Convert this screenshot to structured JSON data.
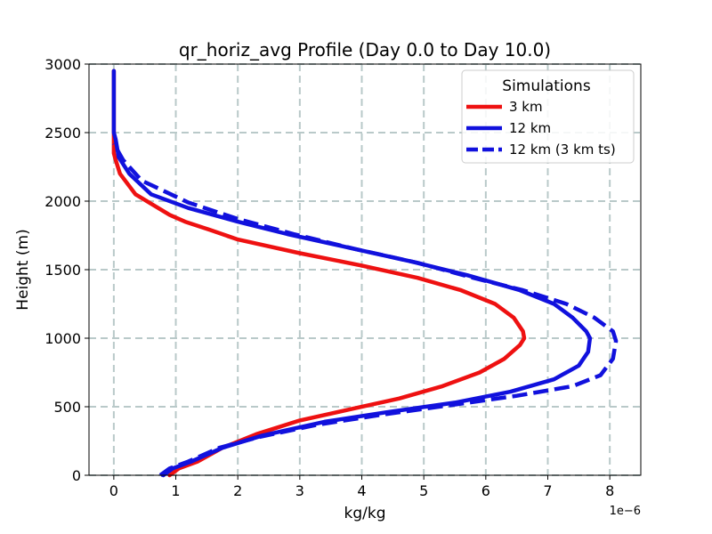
{
  "chart_data": {
    "type": "line",
    "title": "qr_horiz_avg Profile (Day 0.0 to Day 10.0)",
    "xlabel": "kg/kg",
    "ylabel": "Height (m)",
    "x_offset_label": "1e−6",
    "xlim": [
      -0.4,
      8.5
    ],
    "ylim": [
      0,
      3000
    ],
    "xticks": [
      0,
      1,
      2,
      3,
      4,
      5,
      6,
      7,
      8
    ],
    "xtick_labels": [
      "0",
      "1",
      "2",
      "3",
      "4",
      "5",
      "6",
      "7",
      "8"
    ],
    "yticks": [
      0,
      500,
      1000,
      1500,
      2000,
      2500,
      3000
    ],
    "ytick_labels": [
      "0",
      "500",
      "1000",
      "1500",
      "2000",
      "2500",
      "3000"
    ],
    "x_scale_factor": 1e-06,
    "grid": true,
    "legend": {
      "title": "Simulations",
      "location": "top-right"
    },
    "series": [
      {
        "name": "3 km",
        "color": "#ee1111",
        "style": "solid",
        "points": [
          [
            0.9,
            0
          ],
          [
            1.05,
            50
          ],
          [
            1.35,
            100
          ],
          [
            1.75,
            200
          ],
          [
            2.3,
            300
          ],
          [
            3.0,
            400
          ],
          [
            3.8,
            480
          ],
          [
            4.6,
            560
          ],
          [
            5.3,
            650
          ],
          [
            5.9,
            750
          ],
          [
            6.3,
            850
          ],
          [
            6.55,
            950
          ],
          [
            6.62,
            1000
          ],
          [
            6.6,
            1050
          ],
          [
            6.45,
            1150
          ],
          [
            6.15,
            1250
          ],
          [
            5.6,
            1350
          ],
          [
            4.9,
            1440
          ],
          [
            4.0,
            1530
          ],
          [
            3.0,
            1620
          ],
          [
            2.0,
            1720
          ],
          [
            1.55,
            1790
          ],
          [
            1.15,
            1850
          ],
          [
            0.9,
            1900
          ],
          [
            0.35,
            2050
          ],
          [
            0.1,
            2200
          ],
          [
            0.03,
            2300
          ],
          [
            0.0,
            2350
          ],
          [
            0.0,
            2500
          ],
          [
            0.0,
            2950
          ]
        ]
      },
      {
        "name": "12 km",
        "color": "#1111dd",
        "style": "solid",
        "points": [
          [
            0.8,
            0
          ],
          [
            0.95,
            50
          ],
          [
            1.25,
            100
          ],
          [
            1.75,
            200
          ],
          [
            2.4,
            290
          ],
          [
            3.4,
            390
          ],
          [
            4.4,
            460
          ],
          [
            5.5,
            530
          ],
          [
            6.4,
            610
          ],
          [
            7.1,
            700
          ],
          [
            7.5,
            800
          ],
          [
            7.65,
            900
          ],
          [
            7.68,
            1000
          ],
          [
            7.62,
            1050
          ],
          [
            7.4,
            1150
          ],
          [
            7.1,
            1250
          ],
          [
            6.55,
            1350
          ],
          [
            5.7,
            1460
          ],
          [
            4.8,
            1560
          ],
          [
            3.8,
            1660
          ],
          [
            2.8,
            1760
          ],
          [
            2.0,
            1850
          ],
          [
            1.2,
            1950
          ],
          [
            0.6,
            2050
          ],
          [
            0.25,
            2200
          ],
          [
            0.08,
            2320
          ],
          [
            0.03,
            2450
          ],
          [
            0.0,
            2500
          ],
          [
            0.0,
            2950
          ]
        ]
      },
      {
        "name": "12 km (3 km ts)",
        "color": "#1111dd",
        "style": "dashed",
        "points": [
          [
            0.75,
            0
          ],
          [
            0.9,
            50
          ],
          [
            1.2,
            100
          ],
          [
            1.7,
            200
          ],
          [
            2.35,
            280
          ],
          [
            3.3,
            370
          ],
          [
            4.3,
            440
          ],
          [
            5.4,
            510
          ],
          [
            6.5,
            580
          ],
          [
            7.4,
            650
          ],
          [
            7.85,
            730
          ],
          [
            8.05,
            850
          ],
          [
            8.1,
            980
          ],
          [
            8.05,
            1050
          ],
          [
            7.75,
            1150
          ],
          [
            7.3,
            1250
          ],
          [
            6.6,
            1350
          ],
          [
            5.8,
            1440
          ],
          [
            4.9,
            1550
          ],
          [
            3.9,
            1650
          ],
          [
            2.9,
            1760
          ],
          [
            2.0,
            1870
          ],
          [
            1.2,
            1990
          ],
          [
            0.45,
            2150
          ],
          [
            0.15,
            2300
          ],
          [
            0.05,
            2380
          ],
          [
            0.0,
            2420
          ]
        ]
      }
    ]
  }
}
